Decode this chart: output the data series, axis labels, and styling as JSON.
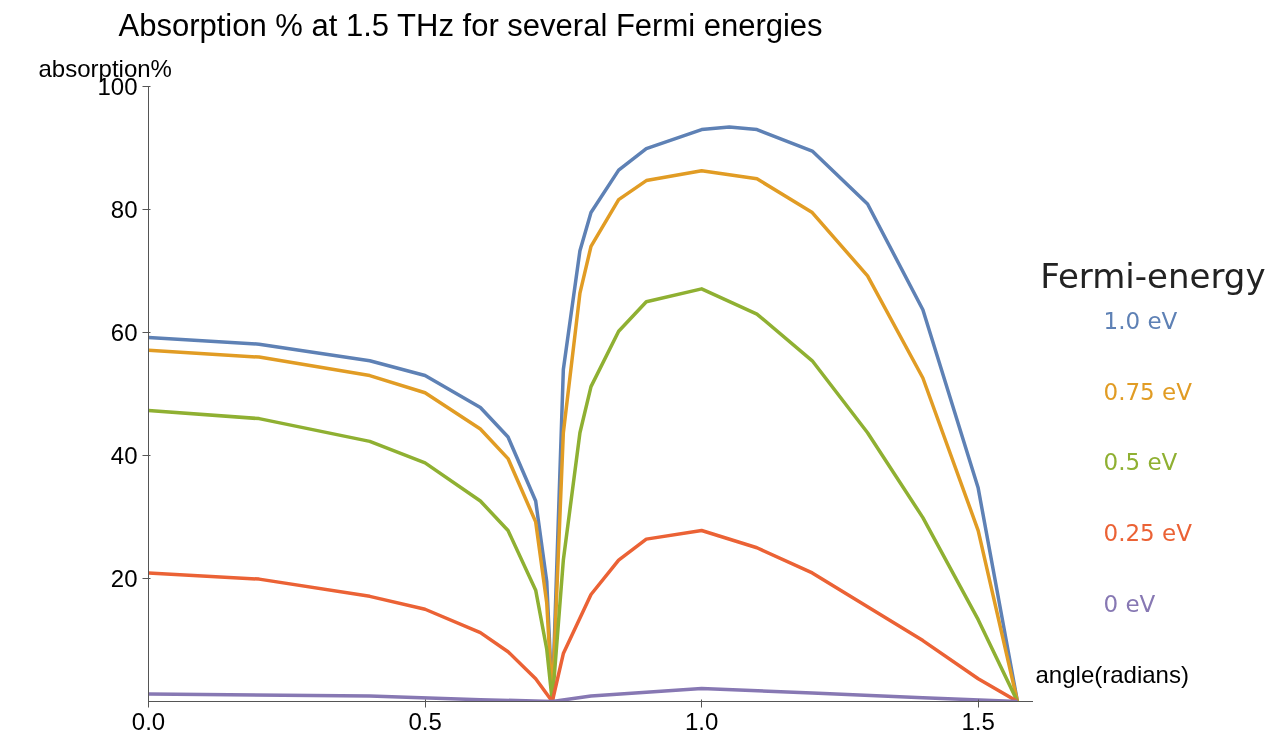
{
  "chart_data": {
    "type": "line",
    "title": "Absorption % at 1.5 THz for several Fermi energies",
    "ylabel": "absorption%",
    "xlabel": "angle(radians)",
    "legend_title": "Fermi-energy",
    "grid": false,
    "marker": "none",
    "line_style": "solid",
    "xlim": [
      0,
      1.6
    ],
    "ylim": [
      0,
      100
    ],
    "xticks": [
      {
        "value": 0,
        "label": "0.0"
      },
      0.5,
      {
        "value": 1,
        "label": "1.0"
      },
      1.5
    ],
    "yticks": [
      20,
      40,
      60,
      80,
      100
    ],
    "series": [
      {
        "name": "1.0 eV",
        "color": "#5e81b5",
        "x": [
          0,
          0.2,
          0.4,
          0.5,
          0.6,
          0.65,
          0.7,
          0.72,
          0.73,
          0.75,
          0.78,
          0.8,
          0.85,
          0.9,
          1.0,
          1.05,
          1.1,
          1.2,
          1.3,
          1.4,
          1.5,
          1.571
        ],
        "values": [
          59.2,
          58.1,
          55.4,
          53,
          47.8,
          43,
          32.6,
          19.5,
          0,
          54,
          73.3,
          79.5,
          86.4,
          89.9,
          93,
          93.4,
          93,
          89.5,
          80.9,
          63.7,
          34.7,
          0
        ]
      },
      {
        "name": "0.75 eV",
        "color": "#e19c24",
        "x": [
          0,
          0.2,
          0.4,
          0.5,
          0.6,
          0.65,
          0.7,
          0.72,
          0.73,
          0.75,
          0.78,
          0.8,
          0.85,
          0.9,
          1.0,
          1.1,
          1.2,
          1.3,
          1.4,
          1.5,
          1.571
        ],
        "values": [
          57.1,
          56,
          53,
          50.2,
          44.3,
          39.5,
          29.2,
          16,
          0,
          43.7,
          66.4,
          74,
          81.6,
          84.7,
          86.3,
          85,
          79.5,
          69.2,
          52.6,
          27.8,
          0
        ]
      },
      {
        "name": "0.5 eV",
        "color": "#8fb032",
        "x": [
          0,
          0.2,
          0.4,
          0.5,
          0.6,
          0.65,
          0.7,
          0.72,
          0.73,
          0.75,
          0.78,
          0.8,
          0.85,
          0.9,
          1.0,
          1.1,
          1.2,
          1.3,
          1.4,
          1.5,
          1.571
        ],
        "values": [
          47.3,
          46,
          42.3,
          38.8,
          32.6,
          27.8,
          18.1,
          8.5,
          0,
          23,
          43.7,
          51.2,
          60.2,
          65,
          67.1,
          63,
          55.4,
          43.7,
          29.9,
          13.3,
          0
        ]
      },
      {
        "name": "0.25 eV",
        "color": "#eb6235",
        "x": [
          0,
          0.2,
          0.4,
          0.5,
          0.6,
          0.65,
          0.7,
          0.73,
          0.75,
          0.8,
          0.85,
          0.9,
          1.0,
          1.1,
          1.2,
          1.3,
          1.4,
          1.5,
          1.571
        ],
        "values": [
          20.9,
          19.9,
          17.1,
          15,
          11.2,
          8.1,
          3.7,
          0,
          7.8,
          17.4,
          23,
          26.4,
          27.8,
          25,
          20.9,
          15.4,
          9.9,
          3.7,
          0
        ]
      },
      {
        "name": "0 eV",
        "color": "#8778b3",
        "x": [
          0,
          0.4,
          0.6,
          0.73,
          0.8,
          1.0,
          1.2,
          1.4,
          1.571
        ],
        "values": [
          1.2,
          0.9,
          0.3,
          0,
          0.9,
          2.1,
          1.4,
          0.6,
          0
        ]
      }
    ]
  }
}
